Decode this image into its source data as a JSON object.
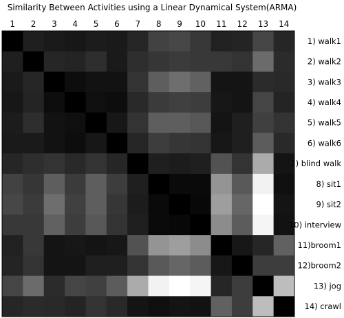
{
  "chart_data": {
    "type": "heatmap",
    "title": "Similarity Between Activities using a Linear Dynamical System(ARMA)",
    "xlabel": "",
    "ylabel": "",
    "x_tick_labels": [
      "1",
      "2",
      "3",
      "4",
      "5",
      "6",
      "7",
      "8",
      "9",
      "10",
      "11",
      "12",
      "13",
      "14"
    ],
    "row_labels": [
      "1) walk1",
      "2) walk2",
      "3) walk3",
      "4) walk4",
      "5) walk5",
      "6) walk6",
      "7) blind walk",
      "8) sit1",
      "9) sit2",
      "10) interview",
      "11)broom1",
      "12)broom2",
      "13) jog",
      "14) crawl"
    ],
    "colormap": "gray",
    "value_range": [
      0,
      1
    ],
    "values": [
      [
        0.0,
        0.12,
        0.1,
        0.09,
        0.11,
        0.1,
        0.15,
        0.26,
        0.28,
        0.22,
        0.13,
        0.14,
        0.27,
        0.15
      ],
      [
        0.12,
        0.0,
        0.15,
        0.14,
        0.18,
        0.1,
        0.18,
        0.21,
        0.23,
        0.22,
        0.22,
        0.2,
        0.42,
        0.17
      ],
      [
        0.1,
        0.15,
        0.0,
        0.05,
        0.07,
        0.07,
        0.2,
        0.37,
        0.43,
        0.38,
        0.08,
        0.08,
        0.17,
        0.16
      ],
      [
        0.09,
        0.14,
        0.05,
        0.0,
        0.06,
        0.05,
        0.16,
        0.23,
        0.25,
        0.24,
        0.09,
        0.08,
        0.27,
        0.14
      ],
      [
        0.11,
        0.18,
        0.07,
        0.06,
        0.0,
        0.09,
        0.2,
        0.37,
        0.37,
        0.34,
        0.08,
        0.12,
        0.25,
        0.2
      ],
      [
        0.1,
        0.1,
        0.07,
        0.05,
        0.09,
        0.0,
        0.15,
        0.24,
        0.21,
        0.2,
        0.09,
        0.12,
        0.36,
        0.16
      ],
      [
        0.15,
        0.18,
        0.2,
        0.16,
        0.2,
        0.15,
        0.0,
        0.12,
        0.11,
        0.12,
        0.32,
        0.2,
        0.67,
        0.08
      ],
      [
        0.26,
        0.21,
        0.37,
        0.23,
        0.37,
        0.24,
        0.12,
        0.0,
        0.04,
        0.04,
        0.58,
        0.35,
        0.95,
        0.06
      ],
      [
        0.28,
        0.23,
        0.43,
        0.25,
        0.37,
        0.21,
        0.11,
        0.04,
        0.0,
        0.03,
        0.62,
        0.4,
        1.0,
        0.08
      ],
      [
        0.22,
        0.22,
        0.38,
        0.24,
        0.34,
        0.2,
        0.12,
        0.04,
        0.03,
        0.0,
        0.55,
        0.36,
        0.96,
        0.07
      ],
      [
        0.13,
        0.22,
        0.08,
        0.09,
        0.08,
        0.09,
        0.32,
        0.58,
        0.62,
        0.55,
        0.0,
        0.09,
        0.15,
        0.38
      ],
      [
        0.14,
        0.2,
        0.08,
        0.08,
        0.12,
        0.12,
        0.2,
        0.35,
        0.4,
        0.36,
        0.09,
        0.0,
        0.24,
        0.24
      ],
      [
        0.27,
        0.42,
        0.17,
        0.27,
        0.25,
        0.36,
        0.67,
        0.95,
        1.0,
        0.96,
        0.15,
        0.24,
        0.0,
        0.74
      ],
      [
        0.15,
        0.17,
        0.16,
        0.14,
        0.2,
        0.16,
        0.08,
        0.06,
        0.08,
        0.07,
        0.38,
        0.24,
        0.74,
        0.0
      ]
    ]
  }
}
